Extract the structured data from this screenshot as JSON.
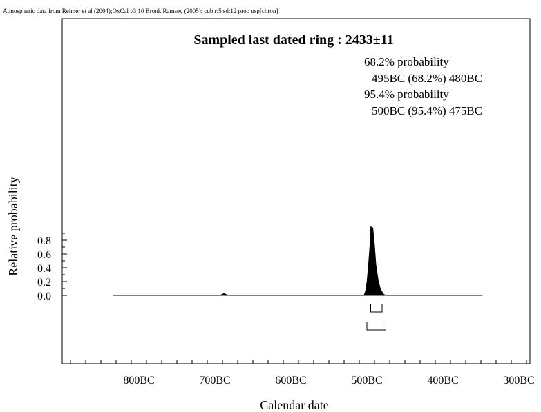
{
  "header": "Atmospheric data from Reimer et al (2004);OxCal v3.10 Bronk Ramsey (2005); cub r:5 sd:12 prob usp[chron]",
  "chart_data": {
    "type": "area",
    "title": "Sampled last dated ring : 2433±11",
    "xlabel": "Calendar date",
    "ylabel": "Relative probability",
    "x_unit": "calendar year (BC)",
    "xlim": [
      900,
      290
    ],
    "ylim": [
      -0.5,
      1.0
    ],
    "x_ticks": [
      {
        "value": 800,
        "label": "800BC"
      },
      {
        "value": 700,
        "label": "700BC"
      },
      {
        "value": 600,
        "label": "600BC"
      },
      {
        "value": 500,
        "label": "500BC"
      },
      {
        "value": 400,
        "label": "400BC"
      },
      {
        "value": 300,
        "label": "300BC"
      }
    ],
    "y_ticks": [
      {
        "value": 0.0,
        "label": "0.0"
      },
      {
        "value": 0.2,
        "label": "0.2"
      },
      {
        "value": 0.4,
        "label": "0.4"
      },
      {
        "value": 0.6,
        "label": "0.6"
      },
      {
        "value": 0.8,
        "label": "0.8"
      }
    ],
    "baseline_range": [
      834,
      348
    ],
    "distribution": [
      {
        "x": 834,
        "y": 0.0
      },
      {
        "x": 694,
        "y": 0.0
      },
      {
        "x": 688,
        "y": 0.03
      },
      {
        "x": 682,
        "y": 0.0
      },
      {
        "x": 504,
        "y": 0.0
      },
      {
        "x": 502,
        "y": 0.06
      },
      {
        "x": 500,
        "y": 0.2
      },
      {
        "x": 498,
        "y": 0.45
      },
      {
        "x": 496,
        "y": 0.75
      },
      {
        "x": 495,
        "y": 1.0
      },
      {
        "x": 492,
        "y": 0.98
      },
      {
        "x": 490,
        "y": 0.75
      },
      {
        "x": 488,
        "y": 0.45
      },
      {
        "x": 485,
        "y": 0.22
      },
      {
        "x": 482,
        "y": 0.09
      },
      {
        "x": 478,
        "y": 0.02
      },
      {
        "x": 475,
        "y": 0.0
      },
      {
        "x": 348,
        "y": 0.0
      }
    ],
    "ranges": [
      {
        "label": "68.2% probability",
        "from": 495,
        "to": 480,
        "percent": "68.2%",
        "text": "495BC (68.2%) 480BC"
      },
      {
        "label": "95.4% probability",
        "from": 500,
        "to": 475,
        "percent": "95.4%",
        "text": "500BC (95.4%) 475BC"
      }
    ],
    "colors": {
      "fill": "#000000",
      "axis": "#000000"
    }
  }
}
